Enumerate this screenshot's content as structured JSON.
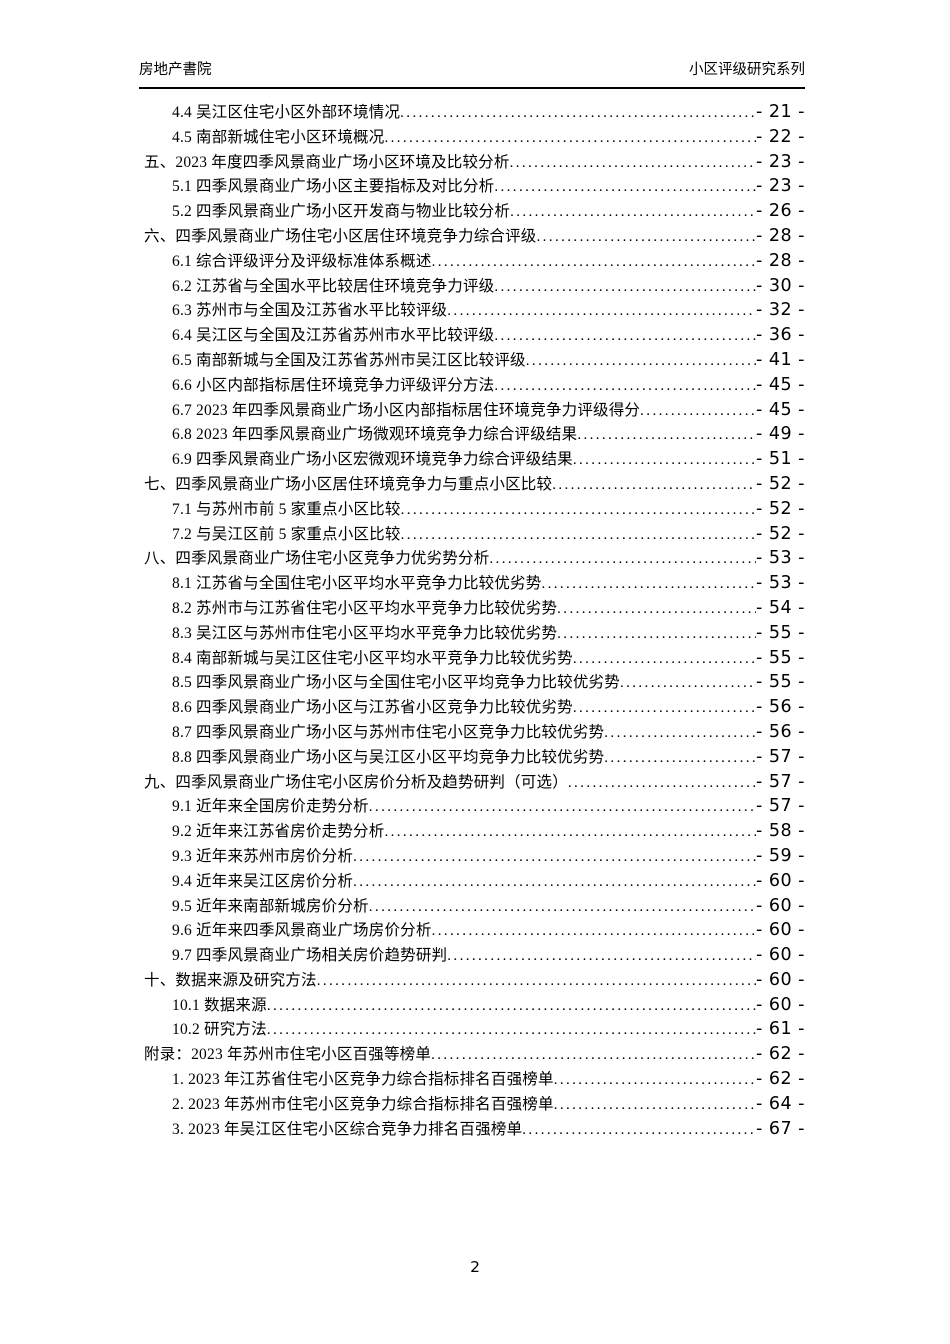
{
  "header": {
    "left": "房地产書院",
    "right": "小区评级研究系列"
  },
  "footer": {
    "page_number": "2"
  },
  "toc": {
    "entries": [
      {
        "level": 1,
        "label": "4.4 吴江区住宅小区外部环境情况",
        "page": "- 21 -"
      },
      {
        "level": 1,
        "label": "4.5 南部新城住宅小区环境概况",
        "page": "- 22 -"
      },
      {
        "level": 0,
        "label": "五、2023 年度四季风景商业广场小区环境及比较分析",
        "page": "- 23 -"
      },
      {
        "level": 1,
        "label": "5.1 四季风景商业广场小区主要指标及对比分析",
        "page": "- 23 -"
      },
      {
        "level": 1,
        "label": "5.2 四季风景商业广场小区开发商与物业比较分析",
        "page": "- 26 -"
      },
      {
        "level": 0,
        "label": "六、四季风景商业广场住宅小区居住环境竞争力综合评级",
        "page": "- 28 -"
      },
      {
        "level": 1,
        "label": "6.1 综合评级评分及评级标准体系概述",
        "page": "- 28 -"
      },
      {
        "level": 1,
        "label": "6.2 江苏省与全国水平比较居住环境竞争力评级",
        "page": "- 30 -"
      },
      {
        "level": 1,
        "label": "6.3 苏州市与全国及江苏省水平比较评级",
        "page": "- 32 -"
      },
      {
        "level": 1,
        "label": "6.4 吴江区与全国及江苏省苏州市水平比较评级",
        "page": "- 36 -"
      },
      {
        "level": 1,
        "label": "6.5 南部新城与全国及江苏省苏州市吴江区比较评级",
        "page": "- 41 -"
      },
      {
        "level": 1,
        "label": "6.6 小区内部指标居住环境竞争力评级评分方法",
        "page": "- 45 -"
      },
      {
        "level": 1,
        "label": "6.7 2023 年四季风景商业广场小区内部指标居住环境竞争力评级得分",
        "page": "- 45 -"
      },
      {
        "level": 1,
        "label": "6.8 2023 年四季风景商业广场微观环境竞争力综合评级结果",
        "page": "- 49 -"
      },
      {
        "level": 1,
        "label": "6.9 四季风景商业广场小区宏微观环境竞争力综合评级结果",
        "page": "- 51 -"
      },
      {
        "level": 0,
        "label": "七、四季风景商业广场小区居住环境竞争力与重点小区比较",
        "page": "- 52 -"
      },
      {
        "level": 1,
        "label": "7.1 与苏州市前 5 家重点小区比较",
        "page": "- 52 -"
      },
      {
        "level": 1,
        "label": "7.2 与吴江区前 5 家重点小区比较",
        "page": "- 52 -"
      },
      {
        "level": 0,
        "label": "八、四季风景商业广场住宅小区竞争力优劣势分析",
        "page": "- 53 -"
      },
      {
        "level": 1,
        "label": "8.1 江苏省与全国住宅小区平均水平竞争力比较优劣势",
        "page": "- 53 -"
      },
      {
        "level": 1,
        "label": "8.2 苏州市与江苏省住宅小区平均水平竞争力比较优劣势",
        "page": "- 54 -"
      },
      {
        "level": 1,
        "label": "8.3 吴江区与苏州市住宅小区平均水平竞争力比较优劣势",
        "page": "- 55 -"
      },
      {
        "level": 1,
        "label": "8.4 南部新城与吴江区住宅小区平均水平竞争力比较优劣势",
        "page": "- 55 -"
      },
      {
        "level": 1,
        "label": "8.5 四季风景商业广场小区与全国住宅小区平均竞争力比较优劣势",
        "page": "- 55 -"
      },
      {
        "level": 1,
        "label": "8.6 四季风景商业广场小区与江苏省小区竞争力比较优劣势",
        "page": "- 56 -"
      },
      {
        "level": 1,
        "label": "8.7 四季风景商业广场小区与苏州市住宅小区竞争力比较优劣势",
        "page": "- 56 -"
      },
      {
        "level": 1,
        "label": "8.8 四季风景商业广场小区与吴江区小区平均竞争力比较优劣势",
        "page": "- 57 -"
      },
      {
        "level": 0,
        "label": "九、四季风景商业广场住宅小区房价分析及趋势研判（可选）",
        "page": "- 57 -"
      },
      {
        "level": 1,
        "label": "9.1 近年来全国房价走势分析",
        "page": "- 57 -"
      },
      {
        "level": 1,
        "label": "9.2 近年来江苏省房价走势分析",
        "page": "- 58 -"
      },
      {
        "level": 1,
        "label": "9.3 近年来苏州市房价分析",
        "page": "- 59 -"
      },
      {
        "level": 1,
        "label": "9.4 近年来吴江区房价分析",
        "page": "- 60 -"
      },
      {
        "level": 1,
        "label": "9.5 近年来南部新城房价分析",
        "page": "- 60 -"
      },
      {
        "level": 1,
        "label": "9.6 近年来四季风景商业广场房价分析",
        "page": "- 60 -"
      },
      {
        "level": 1,
        "label": "9.7 四季风景商业广场相关房价趋势研判",
        "page": "- 60 -"
      },
      {
        "level": 0,
        "label": "十、数据来源及研究方法",
        "page": "- 60 -"
      },
      {
        "level": 1,
        "label": "10.1 数据来源",
        "page": "- 60 -"
      },
      {
        "level": 1,
        "label": "10.2 研究方法",
        "page": "- 61 -"
      },
      {
        "level": 0,
        "label": "附录：2023 年苏州市住宅小区百强等榜单",
        "page": "- 62 -"
      },
      {
        "level": 1,
        "label": "1. 2023 年江苏省住宅小区竞争力综合指标排名百强榜单",
        "page": "- 62 -"
      },
      {
        "level": 1,
        "label": "2. 2023 年苏州市住宅小区竞争力综合指标排名百强榜单",
        "page": "- 64 -"
      },
      {
        "level": 1,
        "label": "3. 2023 年吴江区住宅小区综合竞争力排名百强榜单",
        "page": "- 67 -"
      }
    ]
  }
}
